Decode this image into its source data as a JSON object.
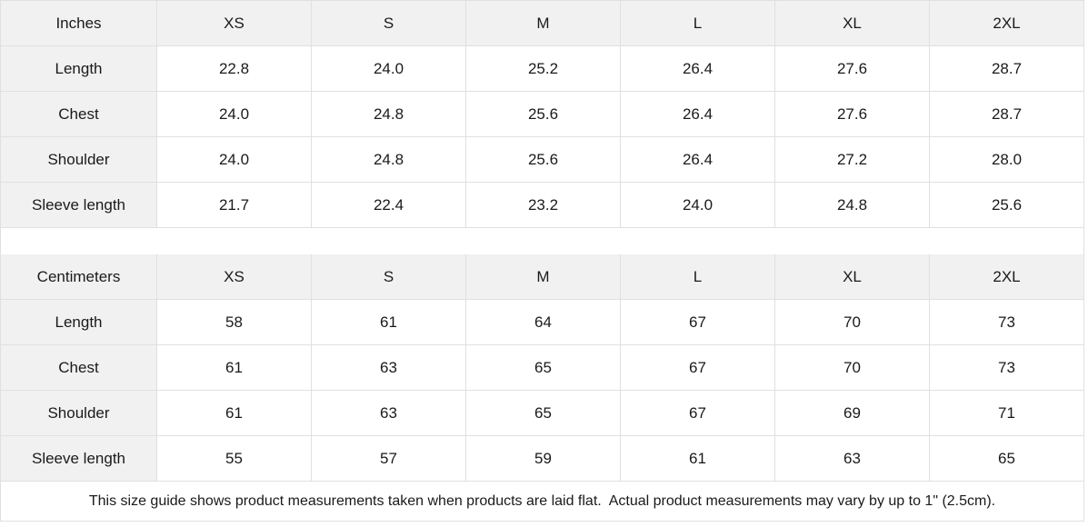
{
  "colors": {
    "header_bg": "#f1f1f1",
    "border": "#e0e0e0",
    "text": "#1a1a1a"
  },
  "tables": [
    {
      "unit_label": "Inches",
      "size_headers": [
        "XS",
        "S",
        "M",
        "L",
        "XL",
        "2XL"
      ],
      "rows": [
        {
          "label": "Length",
          "values": [
            "22.8",
            "24.0",
            "25.2",
            "26.4",
            "27.6",
            "28.7"
          ]
        },
        {
          "label": "Chest",
          "values": [
            "24.0",
            "24.8",
            "25.6",
            "26.4",
            "27.6",
            "28.7"
          ]
        },
        {
          "label": "Shoulder",
          "values": [
            "24.0",
            "24.8",
            "25.6",
            "26.4",
            "27.2",
            "28.0"
          ]
        },
        {
          "label": "Sleeve length",
          "values": [
            "21.7",
            "22.4",
            "23.2",
            "24.0",
            "24.8",
            "25.6"
          ]
        }
      ]
    },
    {
      "unit_label": "Centimeters",
      "size_headers": [
        "XS",
        "S",
        "M",
        "L",
        "XL",
        "2XL"
      ],
      "rows": [
        {
          "label": "Length",
          "values": [
            "58",
            "61",
            "64",
            "67",
            "70",
            "73"
          ]
        },
        {
          "label": "Chest",
          "values": [
            "61",
            "63",
            "65",
            "67",
            "70",
            "73"
          ]
        },
        {
          "label": "Shoulder",
          "values": [
            "61",
            "63",
            "65",
            "67",
            "69",
            "71"
          ]
        },
        {
          "label": "Sleeve length",
          "values": [
            "55",
            "57",
            "59",
            "61",
            "63",
            "65"
          ]
        }
      ]
    }
  ],
  "footer_note": "This size guide shows product measurements taken when products are laid flat.  Actual product measurements may vary by up to 1\" (2.5cm)."
}
